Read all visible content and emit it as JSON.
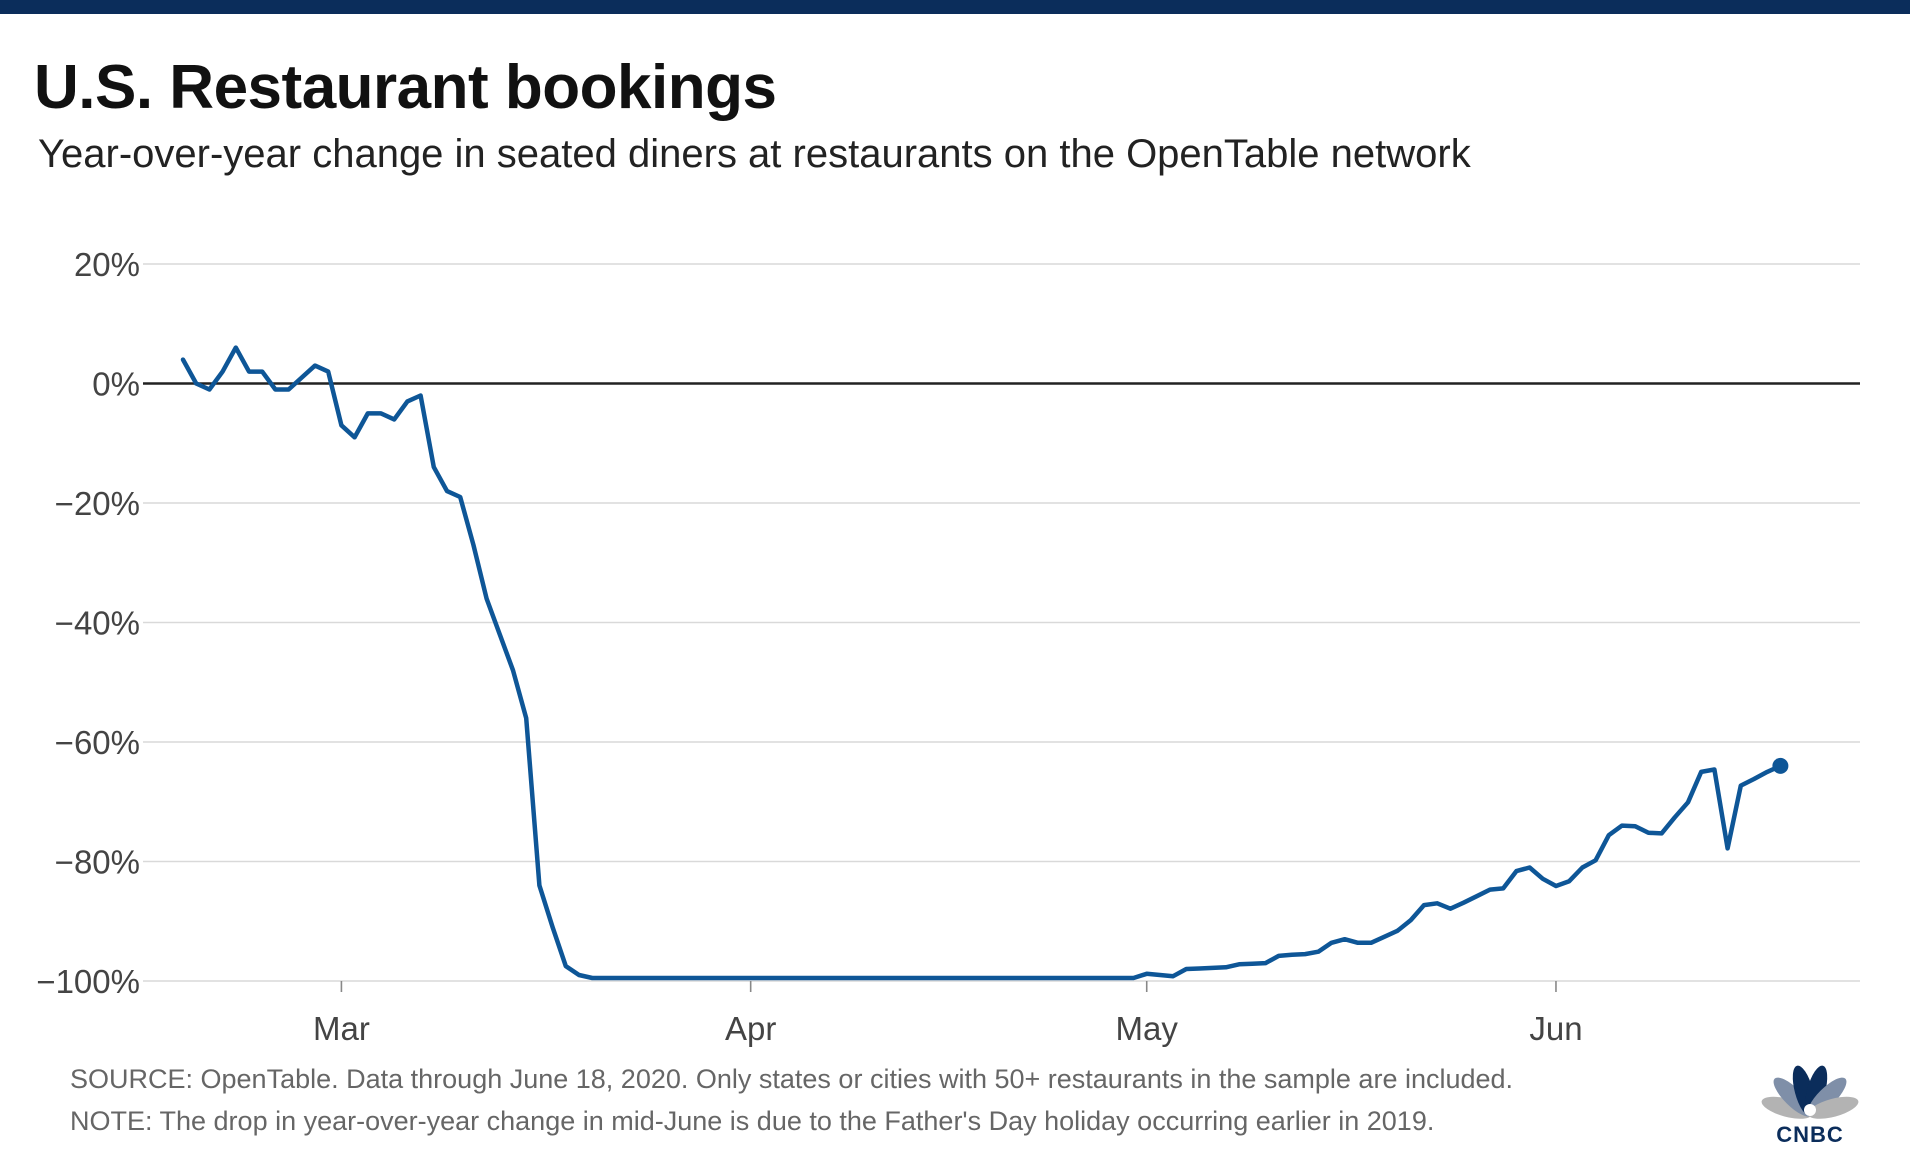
{
  "header": {
    "title": "U.S. Restaurant bookings",
    "subtitle": "Year-over-year change in seated diners at restaurants on the OpenTable network"
  },
  "footer": {
    "source": "SOURCE: OpenTable. Data through June 18, 2020. Only states or cities with 50+ restaurants in the sample are included.",
    "note": "NOTE: The drop in year-over-year change in mid-June is due to the Father's Day holiday occurring earlier in 2019."
  },
  "logo": {
    "text": "CNBC",
    "icon": "nbc-peacock-icon",
    "colors": [
      "#b3b3b3",
      "#7f8fa8",
      "#0b2d5b",
      "#0b2d5b",
      "#7f8fa8",
      "#b3b3b3"
    ]
  },
  "colors": {
    "top_bar": "#0b2d5b",
    "line": "#0e5697",
    "zero_line": "#222222",
    "grid": "#d9d9d9",
    "axis_text": "#444444"
  },
  "chart_data": {
    "type": "line",
    "title": "U.S. Restaurant bookings",
    "subtitle": "Year-over-year change in seated diners at restaurants on the OpenTable network",
    "xlabel": "",
    "ylabel": "",
    "y_unit": "%",
    "ylim": [
      -100,
      20
    ],
    "y_ticks": [
      20,
      0,
      -20,
      -40,
      -60,
      -80,
      -100
    ],
    "y_tick_labels": [
      "20%",
      "0%",
      "−20%",
      "−40%",
      "−60%",
      "−80%",
      "−100%"
    ],
    "x_ticks": [
      "2020-03-01",
      "2020-04-01",
      "2020-05-01",
      "2020-06-01"
    ],
    "x_tick_labels": [
      "Mar",
      "Apr",
      "May",
      "Jun"
    ],
    "xlim": [
      "2020-02-18",
      "2020-06-21"
    ],
    "grid": true,
    "legend": "none",
    "end_marker": true,
    "series": [
      {
        "x": [
          "2020-02-18",
          "2020-02-19",
          "2020-02-20",
          "2020-02-21",
          "2020-02-22",
          "2020-02-23",
          "2020-02-24",
          "2020-02-25",
          "2020-02-26",
          "2020-02-27",
          "2020-02-28",
          "2020-02-29",
          "2020-03-01",
          "2020-03-02",
          "2020-03-03",
          "2020-03-04",
          "2020-03-05",
          "2020-03-06",
          "2020-03-07",
          "2020-03-08",
          "2020-03-09",
          "2020-03-10",
          "2020-03-11",
          "2020-03-12",
          "2020-03-13",
          "2020-03-14",
          "2020-03-15",
          "2020-03-16",
          "2020-03-17",
          "2020-03-18",
          "2020-03-19",
          "2020-03-20",
          "2020-03-21",
          "2020-03-22",
          "2020-04-30",
          "2020-05-01",
          "2020-05-02",
          "2020-05-03",
          "2020-05-04",
          "2020-05-05",
          "2020-05-06",
          "2020-05-07",
          "2020-05-08",
          "2020-05-09",
          "2020-05-10",
          "2020-05-11",
          "2020-05-12",
          "2020-05-13",
          "2020-05-14",
          "2020-05-15",
          "2020-05-16",
          "2020-05-17",
          "2020-05-18",
          "2020-05-19",
          "2020-05-20",
          "2020-05-21",
          "2020-05-22",
          "2020-05-23",
          "2020-05-24",
          "2020-05-25",
          "2020-05-26",
          "2020-05-27",
          "2020-05-28",
          "2020-05-29",
          "2020-05-30",
          "2020-05-31",
          "2020-06-01",
          "2020-06-02",
          "2020-06-03",
          "2020-06-04",
          "2020-06-05",
          "2020-06-06",
          "2020-06-07",
          "2020-06-08",
          "2020-06-09",
          "2020-06-10",
          "2020-06-11",
          "2020-06-12",
          "2020-06-13",
          "2020-06-14",
          "2020-06-15",
          "2020-06-16",
          "2020-06-17",
          "2020-06-18"
        ],
        "y": [
          4,
          0,
          -1,
          2,
          6,
          2,
          2,
          -1,
          -1,
          1,
          3,
          2,
          -7,
          -9,
          -5,
          -5,
          -6,
          -3,
          -2,
          -14,
          -18,
          -19,
          -27,
          -36,
          -42,
          -48,
          -56,
          -84,
          -91,
          -97.5,
          -99,
          -99.5,
          -99.5,
          -99.5,
          -99.5,
          -98.8,
          -99,
          -99.2,
          -98,
          -97.9,
          -97.8,
          -97.7,
          -97.2,
          -97.1,
          -97,
          -95.8,
          -95.6,
          -95.5,
          -95.1,
          -93.6,
          -93,
          -93.6,
          -93.6,
          -92.6,
          -91.6,
          -89.8,
          -87.3,
          -87,
          -87.9,
          -86.9,
          -85.8,
          -84.7,
          -84.5,
          -81.6,
          -81,
          -82.9,
          -84.1,
          -83.3,
          -81,
          -79.8,
          -75.6,
          -74,
          -74.1,
          -75.2,
          -75.3,
          -72.6,
          -70.1,
          -65,
          -64.6,
          -77.8,
          -67.3,
          -66.2,
          -65,
          -64
        ]
      }
    ]
  }
}
